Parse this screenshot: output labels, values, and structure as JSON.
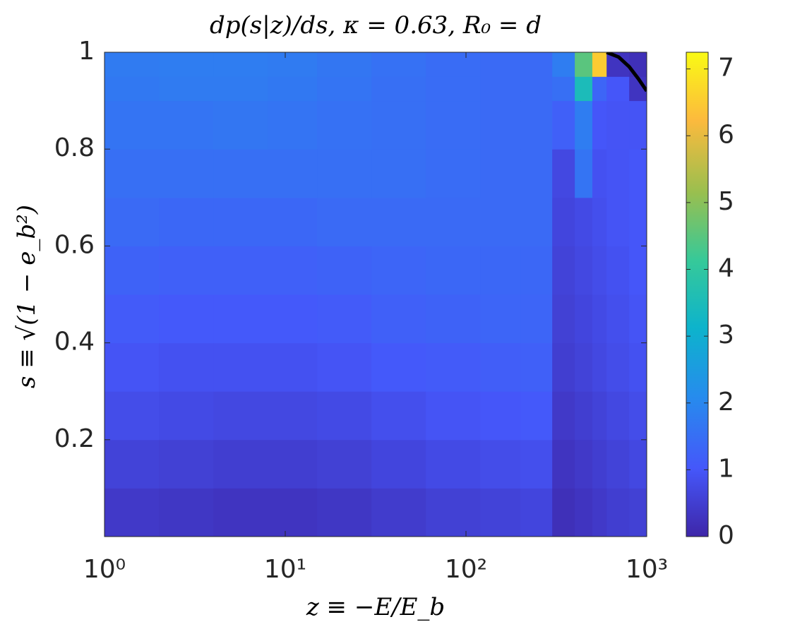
{
  "chart_data": {
    "type": "heatmap",
    "title": "dp(s|z)/ds, κ = 0.63, R₀ = d",
    "x_label": "z ≡ −E/E_b",
    "y_label": "s ≡ √(1 − e_b²)",
    "x_scale": "log",
    "xlim": [
      1,
      1000
    ],
    "xticks": [
      {
        "value": 1,
        "label": "10⁰"
      },
      {
        "value": 10,
        "label": "10¹"
      },
      {
        "value": 100,
        "label": "10²"
      },
      {
        "value": 1000,
        "label": "10³"
      }
    ],
    "ylim": [
      0,
      1
    ],
    "yticks": [
      0.2,
      0.4,
      0.6,
      0.8,
      1
    ],
    "clim": [
      0,
      7.25
    ],
    "cticks": [
      0,
      1,
      2,
      3,
      4,
      5,
      6,
      7
    ],
    "x_edges": [
      1,
      2,
      4,
      8,
      15,
      30,
      60,
      120,
      200,
      300,
      400,
      500,
      600,
      800,
      1000
    ],
    "y_edges": [
      0,
      0.1,
      0.2,
      0.3,
      0.4,
      0.5,
      0.6,
      0.7,
      0.8,
      0.9,
      0.95,
      1
    ],
    "values": [
      [
        0.4,
        0.35,
        0.3,
        0.3,
        0.35,
        0.45,
        0.55,
        0.6,
        0.65,
        0.2,
        0.3,
        0.4,
        0.5,
        0.55
      ],
      [
        0.6,
        0.55,
        0.5,
        0.5,
        0.55,
        0.65,
        0.75,
        0.8,
        0.85,
        0.3,
        0.4,
        0.5,
        0.6,
        0.7
      ],
      [
        0.8,
        0.75,
        0.7,
        0.7,
        0.75,
        0.85,
        0.95,
        1.0,
        1.05,
        0.4,
        0.5,
        0.6,
        0.7,
        0.8
      ],
      [
        0.95,
        0.9,
        0.9,
        0.9,
        0.95,
        1.05,
        1.1,
        1.15,
        1.2,
        0.5,
        0.6,
        0.7,
        0.8,
        0.9
      ],
      [
        1.1,
        1.05,
        1.05,
        1.05,
        1.1,
        1.2,
        1.25,
        1.3,
        1.3,
        0.55,
        0.65,
        0.75,
        0.85,
        0.95
      ],
      [
        1.25,
        1.2,
        1.2,
        1.2,
        1.25,
        1.3,
        1.35,
        1.35,
        1.35,
        0.6,
        0.7,
        0.8,
        0.9,
        1.0
      ],
      [
        1.4,
        1.35,
        1.35,
        1.35,
        1.4,
        1.4,
        1.4,
        1.4,
        1.4,
        0.65,
        0.75,
        0.85,
        0.95,
        1.0
      ],
      [
        1.5,
        1.5,
        1.5,
        1.5,
        1.5,
        1.5,
        1.45,
        1.4,
        1.4,
        0.7,
        1.6,
        0.9,
        0.95,
        1.0
      ],
      [
        1.6,
        1.6,
        1.65,
        1.6,
        1.55,
        1.5,
        1.45,
        1.4,
        1.4,
        1.2,
        1.8,
        1.0,
        0.95,
        0.95
      ],
      [
        1.7,
        1.75,
        1.75,
        1.7,
        1.6,
        1.5,
        1.45,
        1.4,
        1.4,
        1.5,
        3.5,
        1.3,
        1.0,
        0.3
      ],
      [
        1.75,
        1.8,
        1.8,
        1.75,
        1.65,
        1.55,
        1.45,
        1.4,
        1.4,
        1.8,
        4.5,
        6.5,
        0.3,
        0.2
      ]
    ],
    "curve": {
      "color": "#000000",
      "x": [
        600,
        700,
        800,
        900,
        1000
      ],
      "y": [
        1.0,
        0.99,
        0.97,
        0.945,
        0.92
      ]
    }
  }
}
